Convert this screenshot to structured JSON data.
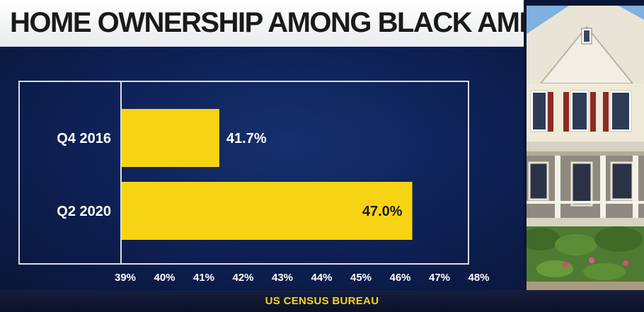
{
  "chart_data": {
    "type": "bar",
    "orientation": "horizontal",
    "title": "HOME OWNERSHIP AMONG BLACK AMERICANS",
    "categories": [
      "Q4 2016",
      "Q2 2020"
    ],
    "values": [
      41.7,
      47.0
    ],
    "value_labels": [
      "41.7%",
      "47.0%"
    ],
    "xlim": [
      39,
      48
    ],
    "xticks": [
      "39%",
      "40%",
      "41%",
      "42%",
      "43%",
      "44%",
      "45%",
      "46%",
      "47%",
      "48%"
    ],
    "xlabel": "",
    "ylabel": "",
    "grid": false,
    "source": "US CENSUS BUREAU",
    "colors": {
      "bar": "#f6d414",
      "value_on_dark": "#ffffff",
      "value_on_bar": "#1a1a1a",
      "tick": "#ffffff",
      "frame": "#d9dde6"
    }
  },
  "photo": {
    "subject": "house-photo"
  }
}
